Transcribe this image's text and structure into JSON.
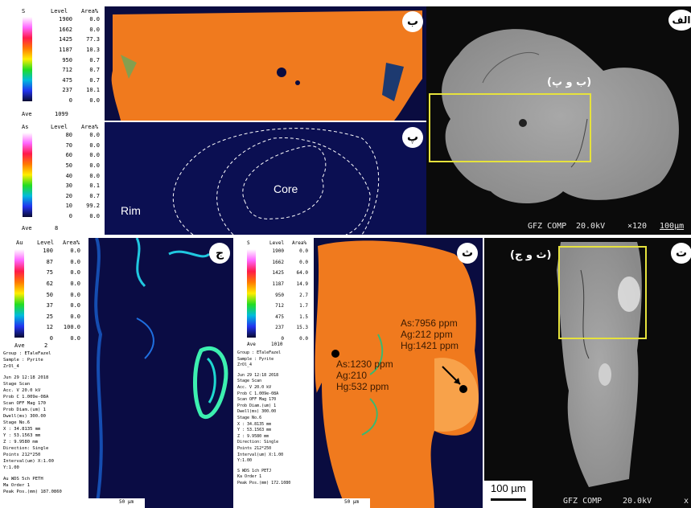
{
  "panel_alef": {
    "label": "الف",
    "box_label": "(ب و پ)",
    "footer": {
      "detector": "GFZ COMP",
      "voltage": "20.0kV",
      "magnification": "×120",
      "scale": "100µm"
    }
  },
  "panel_be": {
    "label": "ب",
    "legend": {
      "element": "S",
      "level_header": "Level",
      "area_header": "Area%",
      "levels": [
        "1900",
        "1662",
        "1425",
        "1187",
        "950",
        "712",
        "475",
        "237",
        "0"
      ],
      "areas": [
        "0.0",
        "0.0",
        "77.3",
        "10.3",
        "0.7",
        "0.7",
        "0.7",
        "10.1",
        "0.0"
      ],
      "ave_label": "Ave",
      "ave_value": "1099"
    }
  },
  "panel_pe": {
    "label": "پ",
    "rim_label": "Rim",
    "core_label": "Core",
    "legend": {
      "element": "As",
      "level_header": "Level",
      "area_header": "Area%",
      "levels": [
        "80",
        "70",
        "60",
        "50",
        "40",
        "30",
        "20",
        "10",
        "0"
      ],
      "areas": [
        "0.0",
        "0.0",
        "0.0",
        "0.0",
        "0.0",
        "0.1",
        "0.7",
        "99.2",
        "0.0"
      ],
      "ave_label": "Ave",
      "ave_value": "8"
    }
  },
  "panel_jim": {
    "label": "ج",
    "legend": {
      "element": "Au",
      "level_header": "Level",
      "area_header": "Area%",
      "levels": [
        "100",
        "87",
        "75",
        "62",
        "50",
        "37",
        "25",
        "12",
        "0"
      ],
      "areas": [
        "0.0",
        "0.0",
        "0.0",
        "0.0",
        "0.0",
        "0.0",
        "0.0",
        "100.0",
        "0.0"
      ],
      "ave_label": "Ave",
      "ave_value": "2"
    },
    "metadata": [
      "Group : ETaleFazel",
      "Sample : Pyrite",
      "ZrOl_4",
      "",
      "Jun 29 12:18 2018",
      "Stage Scan",
      "Acc. V   20.0 kV",
      "Prob C  1.009e-08A",
      "Scan OFF  Mag 170",
      "Prob Diam.(um) 1",
      "Dwell(ms) 300.00",
      "Stage No.6",
      "X : 34.8135 mm",
      "Y : 53.1563 mm",
      "Z : 9.9580 mm",
      "Direction: Single",
      "Points 212*250",
      "Interval(um) X:1.00",
      "Y:1.00",
      "",
      "Au WDS  5ch  PETH",
      "Ma    Order 1",
      "Peak Pos.(mm) 187.0860"
    ],
    "scale": "50 µm"
  },
  "panel_the": {
    "label": "ث",
    "legend": {
      "element": "S",
      "level_header": "Level",
      "area_header": "Area%",
      "levels": [
        "1900",
        "1662",
        "1425",
        "1187",
        "950",
        "712",
        "475",
        "237",
        "0"
      ],
      "areas": [
        "0.0",
        "0.0",
        "64.0",
        "14.9",
        "2.7",
        "1.7",
        "1.5",
        "15.3",
        "0.0"
      ],
      "ave_label": "Ave",
      "ave_value": "1010"
    },
    "metadata": [
      "Group : ETaleFazel",
      "Sample : Pyrite",
      "ZrOl_4",
      "",
      "Jun 29 12:18 2018",
      "Stage Scan",
      "Acc. V   20.0 kV",
      "Prob C  1.009e-08A",
      "Scan OFF  Mag 170",
      "Prob Diam.(um) 1",
      "Dwell(ms) 300.00",
      "Stage No.6",
      "X : 34.8135 mm",
      "Y : 53.1563 mm",
      "Z : 9.9580 mm",
      "Direction: Single",
      "Points 212*250",
      "Interval(um) X:1.00",
      "Y:1.00",
      "",
      "S WDS  1ch  PETJ",
      "Ka    Order 1",
      "Peak Pos.(mm) 172.1080"
    ],
    "point1": [
      "As:1230 ppm",
      "Ag:210",
      "Hg:532 ppm"
    ],
    "point2": [
      "As:7956 ppm",
      "Ag:212 ppm",
      "Hg:1421 ppm"
    ],
    "scale": "50 µm"
  },
  "panel_te": {
    "label": "ت",
    "box_label": "(ث و ج)",
    "footer": {
      "scale": "100 µm",
      "detector": "GFZ COMP",
      "voltage": "20.0kV",
      "trailing": "x"
    }
  },
  "colors": {
    "sem_bg": "#0b0b0b",
    "sem_grain": "#9a9a9a",
    "map_orange": "#f07a1e",
    "map_blue": "#0a0c40",
    "annotation_box": "#e6e23c"
  }
}
